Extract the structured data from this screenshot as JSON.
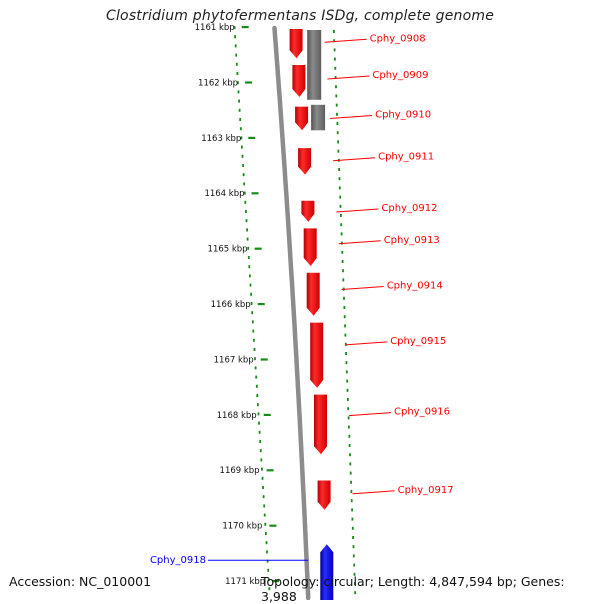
{
  "title": "Clostridium phytofermentans ISDg, complete genome",
  "accession_text": "Accession: NC_010001",
  "summary_text": "Topology: circular; Length: 4,847,594 bp; Genes: 3,988",
  "colors": {
    "forward_gene": "#ff0000",
    "reverse_gene": "#0000ff",
    "other_feature": "#777777",
    "gc_dots": "#1a8a1a",
    "backbone": "#8c8c8c"
  },
  "ruler": {
    "unit": "kbp",
    "ticks": [
      {
        "value": 1161,
        "label": "1161 kbp"
      },
      {
        "value": 1162,
        "label": "1162 kbp"
      },
      {
        "value": 1163,
        "label": "1163 kbp"
      },
      {
        "value": 1164,
        "label": "1164 kbp"
      },
      {
        "value": 1165,
        "label": "1165 kbp"
      },
      {
        "value": 1166,
        "label": "1166 kbp"
      },
      {
        "value": 1167,
        "label": "1167 kbp"
      },
      {
        "value": 1168,
        "label": "1168 kbp"
      },
      {
        "value": 1169,
        "label": "1169 kbp"
      },
      {
        "value": 1170,
        "label": "1170 kbp"
      },
      {
        "value": 1171,
        "label": "1171 kbp"
      }
    ]
  },
  "features": [
    {
      "type": "other",
      "start": 1161.0,
      "end": 1162.35
    },
    {
      "type": "other",
      "start": 1162.35,
      "end": 1162.9
    }
  ],
  "genes": [
    {
      "name": "Cphy_0908",
      "start": 1161.0,
      "end": 1161.6,
      "strand": "+"
    },
    {
      "name": "Cphy_0909",
      "start": 1161.65,
      "end": 1162.3,
      "strand": "+"
    },
    {
      "name": "Cphy_0910",
      "start": 1162.4,
      "end": 1162.9,
      "strand": "+"
    },
    {
      "name": "Cphy_0911",
      "start": 1163.15,
      "end": 1163.7,
      "strand": "+"
    },
    {
      "name": "Cphy_0912",
      "start": 1164.1,
      "end": 1164.55,
      "strand": "+"
    },
    {
      "name": "Cphy_0913",
      "start": 1164.6,
      "end": 1165.35,
      "strand": "+"
    },
    {
      "name": "Cphy_0914",
      "start": 1165.4,
      "end": 1166.25,
      "strand": "+"
    },
    {
      "name": "Cphy_0915",
      "start": 1166.3,
      "end": 1167.55,
      "strand": "+"
    },
    {
      "name": "Cphy_0916",
      "start": 1167.6,
      "end": 1168.75,
      "strand": "+"
    },
    {
      "name": "Cphy_0917",
      "start": 1169.15,
      "end": 1169.75,
      "strand": "+"
    },
    {
      "name": "Cphy_0918",
      "start": 1170.3,
      "end": 1171.5,
      "strand": "-"
    }
  ]
}
